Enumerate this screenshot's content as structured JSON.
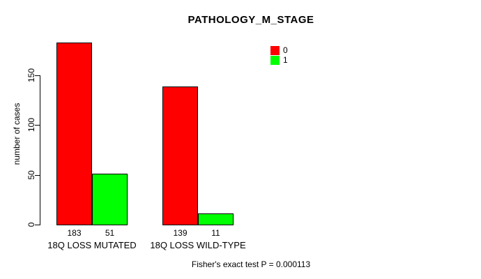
{
  "chart_data": {
    "type": "bar",
    "title": "PATHOLOGY_M_STAGE",
    "ylabel": "number of cases",
    "xlabel": "",
    "footer": "Fisher's exact test P = 0.000113",
    "categories": [
      "18Q LOSS MUTATED",
      "18Q LOSS WILD-TYPE"
    ],
    "series": [
      {
        "name": "0",
        "color": "#ff0000",
        "values": [
          183,
          139
        ]
      },
      {
        "name": "1",
        "color": "#00ff00",
        "values": [
          51,
          11
        ]
      }
    ],
    "yticks": [
      0,
      50,
      100,
      150
    ],
    "ylim": [
      0,
      150
    ],
    "grid": false,
    "legend_position": "top-right",
    "bar_value_labels": [
      [
        183,
        51
      ],
      [
        139,
        11
      ]
    ]
  },
  "colors": {
    "background": "#ffffff",
    "text": "#000000",
    "axis": "#000000",
    "bar_border": "#000000",
    "series_0": "#ff0000",
    "series_1": "#00ff00"
  }
}
